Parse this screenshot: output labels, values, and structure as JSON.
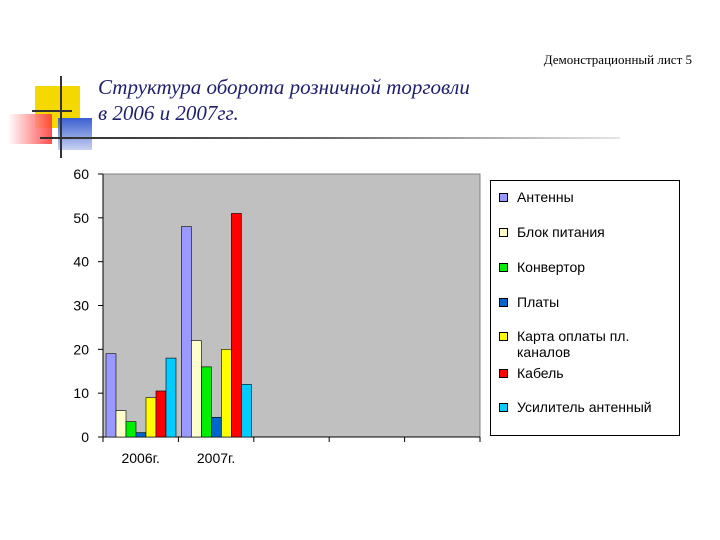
{
  "page": {
    "sheet_label": "Демонстрационный лист 5"
  },
  "title": {
    "line1": "Структура оборота розничной торговли",
    "line2": "в 2006 и 2007гг."
  },
  "colors": {
    "title": "#1f1f6e",
    "plot_bg": "#c0c0c0",
    "deco_yellow": "#f5d800",
    "deco_red": "#ff3b3b",
    "deco_blue": "#3a5fd0"
  },
  "chart_data": {
    "type": "bar",
    "categories": [
      "2006г.",
      "2007г."
    ],
    "extra_empty_categories": 3,
    "ylim": [
      0,
      60
    ],
    "yticks": [
      0,
      10,
      20,
      30,
      40,
      50,
      60
    ],
    "grid": false,
    "legend_position": "right",
    "series": [
      {
        "name": "Антенны",
        "color": "#9999ff",
        "values": [
          19,
          48
        ]
      },
      {
        "name": "Блок питания",
        "color": "#ffffcc",
        "values": [
          6,
          22
        ]
      },
      {
        "name": "Конвертор",
        "color": "#00ee00",
        "values": [
          3.5,
          16
        ]
      },
      {
        "name": "Платы",
        "color": "#0066cc",
        "values": [
          1,
          4.5
        ]
      },
      {
        "name": "Карта оплаты пл. каналов",
        "color": "#ffff00",
        "values": [
          9,
          20
        ]
      },
      {
        "name": "Кабель",
        "color": "#ff0000",
        "values": [
          10.5,
          51
        ]
      },
      {
        "name": "Усилитель антенный",
        "color": "#00ccff",
        "values": [
          18,
          12
        ]
      }
    ]
  }
}
